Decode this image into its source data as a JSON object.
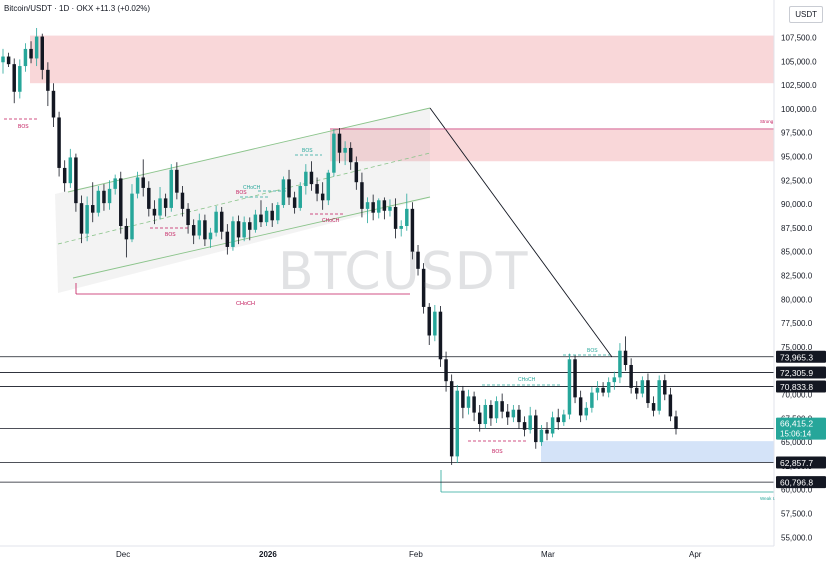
{
  "header": {
    "symbol": "Bitcoin/USDT",
    "sep1": "·",
    "interval": "1D",
    "sep2": "·",
    "exchange": "OKX",
    "change": "+11.3 (+0.02%)"
  },
  "currency_button": "USDT",
  "watermark": "BTCUSDT",
  "colors": {
    "up": "#26a69a",
    "down": "#131722",
    "supply_zone": "#f7c9cc",
    "demand_zone": "#cfe0f7",
    "channel": "#8bc48b",
    "bos_blue": "#26a69a",
    "choch_red": "#c2185b"
  },
  "chart_data": {
    "type": "candlestick",
    "title": "",
    "xlabel": "",
    "ylabel": "",
    "ylim": [
      55000,
      109500
    ],
    "x_ticks": [
      "Dec",
      "2026",
      "Feb",
      "Mar",
      "Apr"
    ],
    "y_ticks": [
      "55,000.0",
      "57,500.0",
      "60,000.0",
      "62,500.0",
      "65,000.0",
      "67,500.0",
      "70,000.0",
      "72,500.0",
      "75,000.0",
      "77,500.0",
      "80,000.0",
      "82,500.0",
      "85,000.0",
      "87,500.0",
      "90,000.0",
      "92,500.0",
      "95,000.0",
      "97,500.0",
      "100,000.0",
      "102,500.0",
      "105,000.0",
      "107,500.0"
    ],
    "price_levels": [
      {
        "label": "73,965.3",
        "value": 73965.3
      },
      {
        "label": "72,305.9",
        "value": 72305.9
      },
      {
        "label": "70,833.8",
        "value": 70833.8
      },
      {
        "label": "62,857.7",
        "value": 62857.7
      },
      {
        "label": "60,796.8",
        "value": 60796.8
      }
    ],
    "current_price": {
      "label": "66,415.2",
      "countdown": "15:06:14",
      "value": 66415.2
    },
    "zones": [
      {
        "type": "supply",
        "from": 102700,
        "to": 107700
      },
      {
        "type": "supply",
        "from": 94500,
        "to": 97800
      },
      {
        "type": "demand",
        "from": 62900,
        "to": 65100
      }
    ],
    "annotations": [
      "BOS",
      "BOS",
      "BOS",
      "CHoCH",
      "CHoCH",
      "CHoCH",
      "BOS",
      "CHoCH",
      "BOS",
      "BOS",
      "Strong",
      "Weak L"
    ],
    "candles": [
      [
        104900,
        106300,
        103700,
        105500
      ],
      [
        105500,
        105900,
        104400,
        104700
      ],
      [
        104700,
        105300,
        100600,
        101800
      ],
      [
        101800,
        105200,
        101100,
        104500
      ],
      [
        104500,
        106900,
        103900,
        106300
      ],
      [
        106300,
        107100,
        104800,
        105300
      ],
      [
        105300,
        108500,
        104500,
        107600
      ],
      [
        107600,
        107900,
        103100,
        104100
      ],
      [
        104100,
        104900,
        100300,
        101900
      ],
      [
        101900,
        102700,
        98100,
        99100
      ],
      [
        99100,
        99700,
        92900,
        93800
      ],
      [
        93800,
        94600,
        91300,
        92200
      ],
      [
        92200,
        95800,
        91700,
        94900
      ],
      [
        94900,
        95300,
        89200,
        90100
      ],
      [
        90100,
        90900,
        85900,
        86900
      ],
      [
        86900,
        90800,
        86100,
        89900
      ],
      [
        89900,
        92300,
        88100,
        89100
      ],
      [
        89100,
        91900,
        88700,
        91400
      ],
      [
        91400,
        92100,
        89300,
        90100
      ],
      [
        90100,
        92500,
        89400,
        91600
      ],
      [
        91600,
        93100,
        91000,
        92700
      ],
      [
        92700,
        93400,
        86900,
        87700
      ],
      [
        87700,
        88500,
        84400,
        86300
      ],
      [
        86300,
        92100,
        86000,
        91100
      ],
      [
        91100,
        93400,
        90600,
        92800
      ],
      [
        92800,
        94700,
        90800,
        91700
      ],
      [
        91700,
        92400,
        88700,
        89500
      ],
      [
        89500,
        90400,
        87900,
        88800
      ],
      [
        88800,
        91800,
        88400,
        90600
      ],
      [
        90600,
        91100,
        88700,
        89600
      ],
      [
        89600,
        94200,
        89200,
        93600
      ],
      [
        93600,
        94400,
        90500,
        91200
      ],
      [
        91200,
        91900,
        88700,
        89500
      ],
      [
        89500,
        90100,
        86900,
        87800
      ],
      [
        87800,
        88400,
        85800,
        86700
      ],
      [
        86700,
        89000,
        86300,
        88300
      ],
      [
        88300,
        88900,
        85600,
        86300
      ],
      [
        86300,
        87500,
        85400,
        87000
      ],
      [
        87000,
        89800,
        86600,
        89200
      ],
      [
        89200,
        89700,
        86300,
        87100
      ],
      [
        87100,
        87900,
        84700,
        85500
      ],
      [
        85500,
        88700,
        85100,
        88200
      ],
      [
        88200,
        88800,
        85800,
        86500
      ],
      [
        86500,
        88700,
        86100,
        88100
      ],
      [
        88100,
        88600,
        86200,
        87300
      ],
      [
        87300,
        89400,
        87000,
        88900
      ],
      [
        88900,
        90400,
        87600,
        88100
      ],
      [
        88100,
        89700,
        87700,
        89300
      ],
      [
        89300,
        90100,
        87600,
        88300
      ],
      [
        88300,
        90200,
        87900,
        89900
      ],
      [
        89900,
        92900,
        89600,
        92600
      ],
      [
        92600,
        93600,
        89900,
        90700
      ],
      [
        90700,
        91300,
        89000,
        89600
      ],
      [
        89600,
        92300,
        89300,
        91900
      ],
      [
        91900,
        94200,
        91000,
        93400
      ],
      [
        93400,
        94500,
        91400,
        92100
      ],
      [
        92100,
        92800,
        90300,
        91100
      ],
      [
        91100,
        92300,
        89400,
        90400
      ],
      [
        90400,
        93600,
        89900,
        93300
      ],
      [
        93300,
        97900,
        92900,
        97400
      ],
      [
        97400,
        98000,
        94300,
        95400
      ],
      [
        95400,
        96600,
        94100,
        95900
      ],
      [
        95900,
        96500,
        93600,
        94400
      ],
      [
        94400,
        95000,
        91500,
        92300
      ],
      [
        92300,
        93300,
        88600,
        89500
      ],
      [
        89500,
        90700,
        88000,
        90200
      ],
      [
        90200,
        91000,
        88300,
        89100
      ],
      [
        89100,
        90600,
        88500,
        90400
      ],
      [
        90400,
        90700,
        88400,
        89300
      ],
      [
        89300,
        90500,
        88700,
        89700
      ],
      [
        89700,
        90600,
        86400,
        87400
      ],
      [
        87400,
        88300,
        86600,
        87700
      ],
      [
        87700,
        91100,
        87200,
        89500
      ],
      [
        89500,
        90200,
        84200,
        85000
      ],
      [
        85000,
        85700,
        82500,
        83200
      ],
      [
        83200,
        83800,
        78500,
        79200
      ],
      [
        79200,
        79600,
        75200,
        76200
      ],
      [
        76200,
        79400,
        75600,
        78700
      ],
      [
        78700,
        79300,
        72900,
        73700
      ],
      [
        73700,
        74500,
        70300,
        71400
      ],
      [
        71400,
        72100,
        62600,
        63500
      ],
      [
        63500,
        71000,
        62800,
        70400
      ],
      [
        70400,
        70900,
        67500,
        68600
      ],
      [
        68600,
        70500,
        67900,
        69800
      ],
      [
        69800,
        70300,
        67200,
        68100
      ],
      [
        68100,
        68900,
        66100,
        66900
      ],
      [
        66900,
        69500,
        66400,
        68900
      ],
      [
        68900,
        69400,
        66700,
        67500
      ],
      [
        67500,
        69800,
        67000,
        69300
      ],
      [
        69300,
        70100,
        67500,
        68200
      ],
      [
        68200,
        69000,
        66800,
        67600
      ],
      [
        67600,
        68900,
        67100,
        68400
      ],
      [
        68400,
        68900,
        66400,
        67100
      ],
      [
        67100,
        67700,
        65600,
        66300
      ],
      [
        66300,
        68700,
        65900,
        67800
      ],
      [
        67800,
        68400,
        64300,
        65000
      ],
      [
        65000,
        66800,
        64600,
        66300
      ],
      [
        66300,
        67100,
        65200,
        65900
      ],
      [
        65900,
        68200,
        65500,
        67600
      ],
      [
        67600,
        68500,
        66300,
        67100
      ],
      [
        67100,
        68400,
        66700,
        67900
      ],
      [
        67900,
        74300,
        67400,
        73700
      ],
      [
        73700,
        74100,
        69100,
        69700
      ],
      [
        69700,
        70400,
        67100,
        67800
      ],
      [
        67800,
        69200,
        67300,
        68600
      ],
      [
        68600,
        70800,
        68100,
        70200
      ],
      [
        70200,
        71400,
        69400,
        70700
      ],
      [
        70700,
        71300,
        69800,
        70200
      ],
      [
        70200,
        71800,
        69700,
        71300
      ],
      [
        71300,
        72400,
        70500,
        71800
      ],
      [
        71800,
        75400,
        71200,
        74600
      ],
      [
        74600,
        76100,
        72500,
        73100
      ],
      [
        73100,
        73800,
        70100,
        70700
      ],
      [
        70700,
        71400,
        69500,
        70100
      ],
      [
        70100,
        71900,
        69700,
        71500
      ],
      [
        71500,
        72200,
        68600,
        69100
      ],
      [
        69100,
        69800,
        67700,
        68300
      ],
      [
        68300,
        72000,
        67900,
        71500
      ],
      [
        71500,
        72100,
        69400,
        70000
      ],
      [
        70000,
        70700,
        67200,
        67700
      ],
      [
        67700,
        68300,
        65800,
        66400
      ]
    ]
  }
}
